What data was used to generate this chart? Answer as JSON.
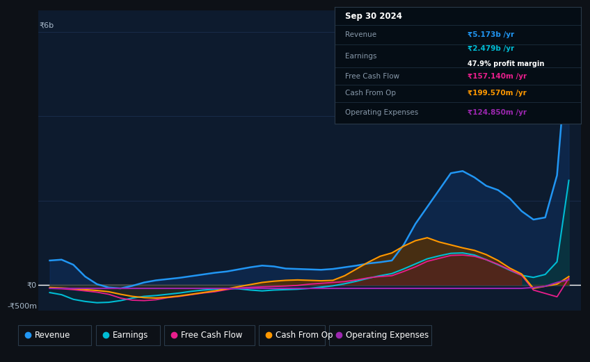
{
  "bg_color": "#0d1117",
  "chart_bg": "#0d1b2e",
  "grid_color": "#1a2f4a",
  "revenue_color": "#2196f3",
  "earnings_color": "#00bcd4",
  "free_cash_flow_color": "#e91e8c",
  "cash_from_op_color": "#ff9800",
  "operating_expenses_color": "#9c27b0",
  "y_label_6b": "₹6b",
  "y_label_0": "₹0",
  "y_label_neg500m": "-₹500m",
  "table_header": "Sep 30 2024",
  "table_revenue_label": "Revenue",
  "table_revenue_value": "₹5.173b /yr",
  "table_earnings_label": "Earnings",
  "table_earnings_value": "₹2.479b /yr",
  "table_margin": "47.9% profit margin",
  "table_fcf_label": "Free Cash Flow",
  "table_fcf_value": "₹157.140m /yr",
  "table_cashop_label": "Cash From Op",
  "table_cashop_value": "₹199.570m /yr",
  "table_opex_label": "Operating Expenses",
  "table_opex_value": "₹124.850m /yr",
  "legend_labels": [
    "Revenue",
    "Earnings",
    "Free Cash Flow",
    "Cash From Op",
    "Operating Expenses"
  ],
  "ylim_min": -600,
  "ylim_max": 6500,
  "xlim_min": 2013.5,
  "xlim_max": 2025.0
}
